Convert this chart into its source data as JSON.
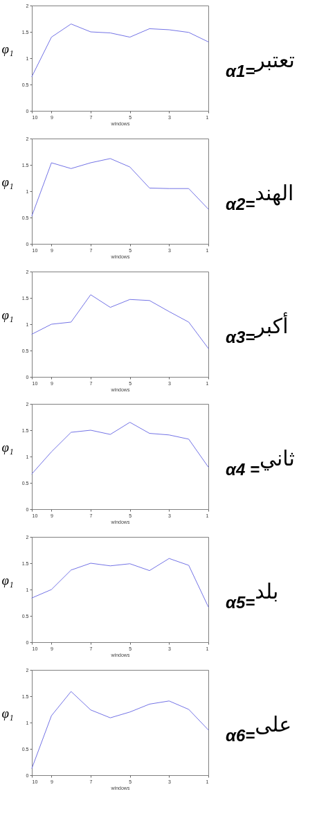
{
  "chart_data": [
    {
      "type": "line",
      "xlabel": "windows",
      "ylabel": "φ₁",
      "x": [
        10,
        9,
        8,
        7,
        6,
        5,
        4,
        3,
        2,
        1
      ],
      "values": [
        0.65,
        1.4,
        1.65,
        1.5,
        1.48,
        1.4,
        1.56,
        1.54,
        1.49,
        1.31
      ],
      "color": "#7373e6",
      "xlim": [
        10,
        1
      ],
      "xticks": [
        10,
        9,
        7,
        5,
        3,
        1
      ],
      "ylim": [
        0,
        2
      ],
      "yticks": [
        0,
        0.5,
        1,
        1.5,
        2
      ],
      "grid": false,
      "annotations": [
        "α1=تعتبر"
      ]
    },
    {
      "type": "line",
      "xlabel": "windows",
      "ylabel": "φ₁",
      "x": [
        10,
        9,
        8,
        7,
        6,
        5,
        4,
        3,
        2,
        1
      ],
      "values": [
        0.53,
        1.54,
        1.43,
        1.54,
        1.62,
        1.46,
        1.06,
        1.05,
        1.05,
        0.66
      ],
      "color": "#7373e6",
      "xlim": [
        10,
        1
      ],
      "xticks": [
        10,
        9,
        7,
        5,
        3,
        1
      ],
      "ylim": [
        0,
        2
      ],
      "yticks": [
        0,
        0.5,
        1,
        1.5,
        2
      ],
      "grid": false,
      "annotations": [
        "α2=الهند"
      ]
    },
    {
      "type": "line",
      "xlabel": "windows",
      "ylabel": "φ₁",
      "x": [
        10,
        9,
        8,
        7,
        6,
        5,
        4,
        3,
        2,
        1
      ],
      "values": [
        0.81,
        1.0,
        1.04,
        1.56,
        1.32,
        1.47,
        1.45,
        1.24,
        1.04,
        0.54
      ],
      "color": "#7373e6",
      "xlim": [
        10,
        1
      ],
      "xticks": [
        10,
        9,
        7,
        5,
        3,
        1
      ],
      "ylim": [
        0,
        2
      ],
      "yticks": [
        0,
        0.5,
        1,
        1.5,
        2
      ],
      "grid": false,
      "annotations": [
        "α3=أكبر"
      ]
    },
    {
      "type": "line",
      "xlabel": "windows",
      "ylabel": "φ₁",
      "x": [
        10,
        9,
        8,
        7,
        6,
        5,
        4,
        3,
        2,
        1
      ],
      "values": [
        0.67,
        1.09,
        1.46,
        1.5,
        1.42,
        1.65,
        1.44,
        1.41,
        1.33,
        0.8
      ],
      "color": "#7373e6",
      "xlim": [
        10,
        1
      ],
      "xticks": [
        10,
        9,
        7,
        5,
        3,
        1
      ],
      "ylim": [
        0,
        2
      ],
      "yticks": [
        0,
        0.5,
        1,
        1.5,
        2
      ],
      "grid": false,
      "annotations": [
        "α4 =ثاني"
      ]
    },
    {
      "type": "line",
      "xlabel": "windows",
      "ylabel": "φ₁",
      "x": [
        10,
        9,
        8,
        7,
        6,
        5,
        4,
        3,
        2,
        1
      ],
      "values": [
        0.84,
        1.0,
        1.37,
        1.5,
        1.45,
        1.49,
        1.36,
        1.59,
        1.46,
        0.67
      ],
      "color": "#7373e6",
      "xlim": [
        10,
        1
      ],
      "xticks": [
        10,
        9,
        7,
        5,
        3,
        1
      ],
      "ylim": [
        0,
        2
      ],
      "yticks": [
        0,
        0.5,
        1,
        1.5,
        2
      ],
      "grid": false,
      "annotations": [
        "α5=بلد"
      ]
    },
    {
      "type": "line",
      "xlabel": "windows",
      "ylabel": "φ₁",
      "x": [
        10,
        9,
        8,
        7,
        6,
        5,
        4,
        3,
        2,
        1
      ],
      "values": [
        0.13,
        1.13,
        1.59,
        1.24,
        1.09,
        1.2,
        1.35,
        1.41,
        1.25,
        0.86
      ],
      "color": "#7373e6",
      "xlim": [
        10,
        1
      ],
      "xticks": [
        10,
        9,
        7,
        5,
        3,
        1
      ],
      "ylim": [
        0,
        2
      ],
      "yticks": [
        0,
        0.5,
        1,
        1.5,
        2
      ],
      "grid": false,
      "annotations": [
        "α6=على"
      ]
    }
  ]
}
